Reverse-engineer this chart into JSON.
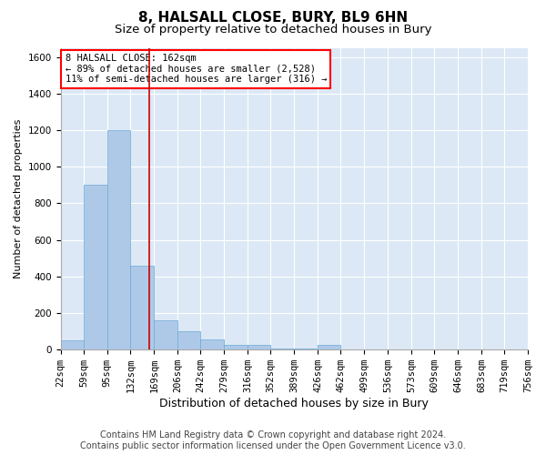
{
  "title": "8, HALSALL CLOSE, BURY, BL9 6HN",
  "subtitle": "Size of property relative to detached houses in Bury",
  "xlabel": "Distribution of detached houses by size in Bury",
  "ylabel": "Number of detached properties",
  "footer_line1": "Contains HM Land Registry data © Crown copyright and database right 2024.",
  "footer_line2": "Contains public sector information licensed under the Open Government Licence v3.0.",
  "annotation_line1": "8 HALSALL CLOSE: 162sqm",
  "annotation_line2": "← 89% of detached houses are smaller (2,528)",
  "annotation_line3": "11% of semi-detached houses are larger (316) →",
  "bar_edges": [
    22,
    59,
    95,
    132,
    169,
    206,
    242,
    279,
    316,
    352,
    389,
    426,
    462,
    499,
    536,
    573,
    609,
    646,
    683,
    719,
    756
  ],
  "bar_heights": [
    50,
    900,
    1200,
    460,
    160,
    100,
    55,
    25,
    25,
    5,
    5,
    25,
    0,
    0,
    0,
    0,
    0,
    0,
    0,
    0
  ],
  "bar_color": "#aec9e8",
  "bar_edge_color": "#6aaad4",
  "vline_x": 162,
  "vline_color": "#cc0000",
  "ylim": [
    0,
    1650
  ],
  "yticks": [
    0,
    200,
    400,
    600,
    800,
    1000,
    1200,
    1400,
    1600
  ],
  "bg_color": "#dce8f5",
  "grid_color": "#ffffff",
  "title_fontsize": 11,
  "subtitle_fontsize": 9.5,
  "ylabel_fontsize": 8,
  "xlabel_fontsize": 9,
  "tick_fontsize": 7.5,
  "footer_fontsize": 7,
  "annotation_fontsize": 7.5
}
